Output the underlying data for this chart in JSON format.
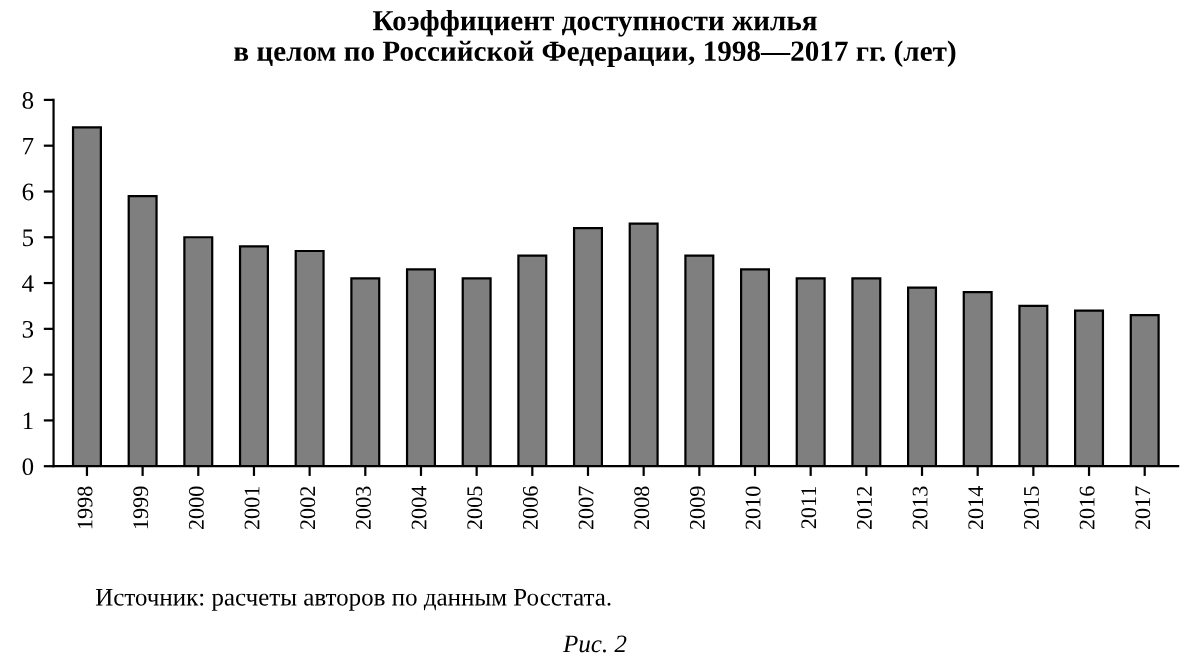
{
  "chart_data": {
    "type": "bar",
    "title": "Коэффициент доступности жилья\nв целом по Российской Федерации, 1998—2017 гг. (лет)",
    "categories": [
      "1998",
      "1999",
      "2000",
      "2001",
      "2002",
      "2003",
      "2004",
      "2005",
      "2006",
      "2007",
      "2008",
      "2009",
      "2010",
      "2011",
      "2012",
      "2013",
      "2014",
      "2015",
      "2016",
      "2017"
    ],
    "values": [
      7.4,
      5.9,
      5.0,
      4.8,
      4.7,
      4.1,
      4.3,
      4.1,
      4.6,
      5.2,
      5.3,
      4.6,
      4.3,
      4.1,
      4.1,
      3.9,
      3.8,
      3.5,
      3.4,
      3.3
    ],
    "color": "#7f7f7f",
    "ylim": [
      0,
      8
    ],
    "yticks": [
      0,
      1,
      2,
      3,
      4,
      5,
      6,
      7,
      8
    ],
    "grid": false,
    "annotations": [
      "Источник: расчеты авторов по данным Росстата.",
      "Рис. 2"
    ]
  }
}
